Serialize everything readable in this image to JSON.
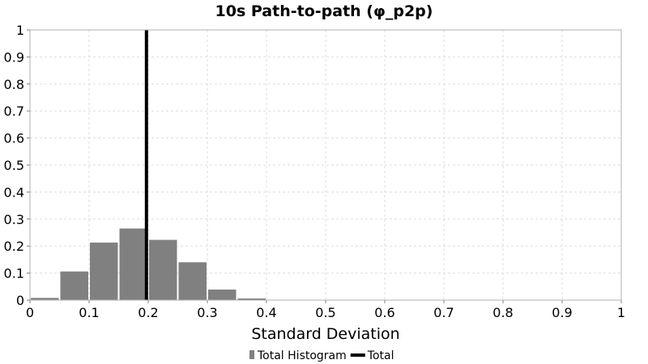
{
  "chart_data": {
    "type": "bar",
    "title": "10s Path-to-path (φ_p2p)",
    "xlabel": "Standard Deviation",
    "ylabel": "",
    "xlim": [
      0,
      1
    ],
    "ylim": [
      0,
      1
    ],
    "grid": true,
    "legend_position": "bottom",
    "x_ticks": [
      "0",
      "0.1",
      "0.2",
      "0.3",
      "0.4",
      "0.5",
      "0.6",
      "0.7",
      "0.8",
      "0.9",
      "1"
    ],
    "y_ticks": [
      "0",
      "0.1",
      "0.2",
      "0.3",
      "0.4",
      "0.5",
      "0.6",
      "0.7",
      "0.8",
      "0.9",
      "1"
    ],
    "bin_width": 0.05,
    "series": [
      {
        "name": "Total Histogram",
        "color": "#808080",
        "bins": [
          {
            "x0": 0.0,
            "x1": 0.05,
            "value": 0.008
          },
          {
            "x0": 0.05,
            "x1": 0.1,
            "value": 0.106
          },
          {
            "x0": 0.1,
            "x1": 0.15,
            "value": 0.213
          },
          {
            "x0": 0.15,
            "x1": 0.2,
            "value": 0.265
          },
          {
            "x0": 0.2,
            "x1": 0.25,
            "value": 0.223
          },
          {
            "x0": 0.25,
            "x1": 0.3,
            "value": 0.14
          },
          {
            "x0": 0.3,
            "x1": 0.35,
            "value": 0.039
          },
          {
            "x0": 0.35,
            "x1": 0.4,
            "value": 0.006
          },
          {
            "x0": 0.4,
            "x1": 0.45,
            "value": 0.001
          }
        ]
      },
      {
        "name": "Total",
        "type": "vline",
        "color": "#000000",
        "x": 0.197
      }
    ]
  }
}
